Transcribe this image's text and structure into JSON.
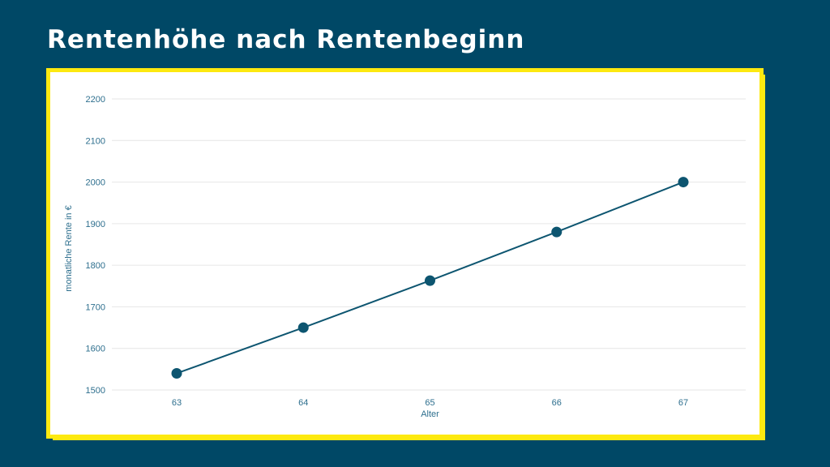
{
  "slide": {
    "title": "Rentenhöhe nach Rentenbeginn"
  },
  "colors": {
    "background": "#004866",
    "frame_border": "#fde910",
    "series": "#0d5570",
    "axis_text": "#2e6f8e",
    "gridline": "#e6e6e6"
  },
  "chart_data": {
    "type": "line",
    "x": [
      63,
      64,
      65,
      66,
      67
    ],
    "series": [
      {
        "values": [
          1540,
          1650,
          1763,
          1880,
          2000
        ]
      }
    ],
    "xlabel": "Alter",
    "ylabel": "monatliche Rente in €",
    "ylim": [
      1500,
      2200
    ],
    "yticks": [
      1500,
      1600,
      1700,
      1800,
      1900,
      2000,
      2100,
      2200
    ],
    "xticks": [
      63,
      64,
      65,
      66,
      67
    ],
    "grid": "horizontal",
    "markers": true,
    "legend": "none"
  }
}
